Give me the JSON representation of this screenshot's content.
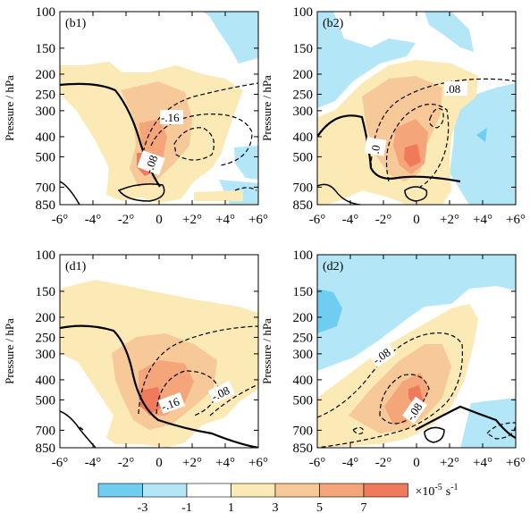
{
  "chart_data": {
    "type": "contour",
    "y_ticks": [
      "100",
      "150",
      "200",
      "250",
      "300",
      "400",
      "500",
      "700",
      "850"
    ],
    "x_ticks": [
      "-6°",
      "-4°",
      "-2°",
      "0",
      "+2°",
      "+4°",
      "+6°"
    ],
    "ylabel": "Pressure / hPa",
    "colorbar": {
      "levels": [
        "-3",
        "-1",
        "1",
        "3",
        "5",
        "7"
      ],
      "colors": [
        "#6fcdf2",
        "#b3e6f7",
        "#ffffff",
        "#fbeab5",
        "#f8c998",
        "#f4a57a",
        "#ef7b5c"
      ],
      "unit": "×10-5 s-1"
    },
    "panels": [
      {
        "label": "(b1)",
        "contour_labels": [
          "-.16",
          "-.08"
        ]
      },
      {
        "label": "(b2)",
        "contour_labels": [
          ".08",
          ".0"
        ]
      },
      {
        "label": "(d1)",
        "contour_labels": [
          "-.16",
          "-.08"
        ]
      },
      {
        "label": "(d2)",
        "contour_labels": [
          "-.08",
          "-.08"
        ]
      }
    ]
  }
}
